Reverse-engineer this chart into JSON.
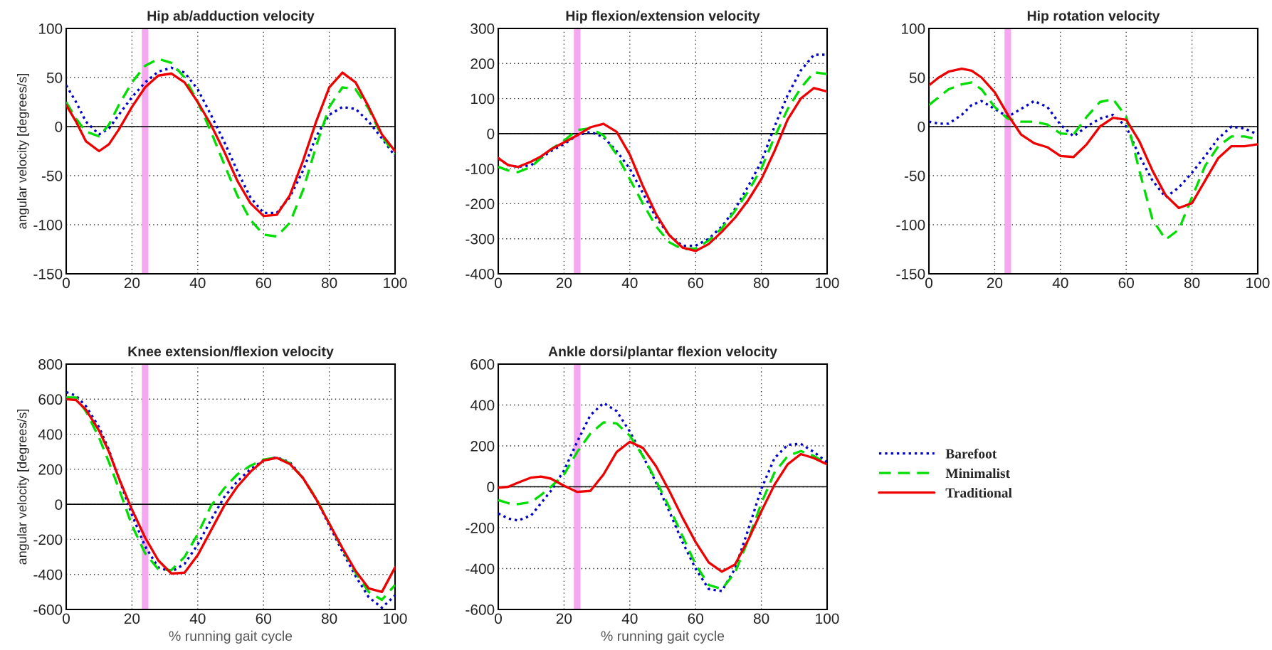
{
  "chart_data": [
    {
      "type": "line",
      "title": "Hip ab/adduction velocity",
      "ylabel": "angular velocity [degrees/s]",
      "x": [
        0,
        3,
        6,
        10,
        13,
        16,
        20,
        24,
        28,
        32,
        36,
        40,
        44,
        48,
        52,
        56,
        60,
        64,
        68,
        72,
        76,
        80,
        84,
        88,
        92,
        96,
        100
      ],
      "xlim": [
        0,
        100
      ],
      "xticks": [
        0,
        20,
        40,
        60,
        80,
        100
      ],
      "ylim": [
        -150,
        100
      ],
      "yticks": [
        -150,
        -100,
        -50,
        0,
        50,
        100
      ],
      "grid": true,
      "ref_lines": [
        {
          "axis": "y",
          "value": 0,
          "color": "#000000"
        }
      ],
      "bands": [
        {
          "axis": "x",
          "from": 23,
          "to": 25,
          "color": "#f5a8f0"
        }
      ],
      "series": [
        {
          "color": "#0000cc",
          "line_style": "dotted",
          "values": [
            42,
            25,
            5,
            -8,
            -2,
            12,
            30,
            45,
            56,
            60,
            55,
            38,
            12,
            -15,
            -45,
            -72,
            -88,
            -88,
            -72,
            -45,
            -10,
            12,
            20,
            18,
            5,
            -12,
            -30
          ]
        },
        {
          "color": "#00dd00",
          "line_style": "dashed",
          "values": [
            25,
            8,
            -5,
            -10,
            2,
            22,
            45,
            62,
            69,
            65,
            50,
            25,
            -5,
            -38,
            -70,
            -95,
            -110,
            -112,
            -98,
            -65,
            -20,
            20,
            40,
            38,
            18,
            -10,
            -28
          ]
        },
        {
          "color": "#ee0000",
          "line_style": "solid",
          "values": [
            22,
            5,
            -15,
            -25,
            -18,
            -3,
            20,
            40,
            52,
            54,
            45,
            25,
            2,
            -25,
            -55,
            -78,
            -91,
            -90,
            -70,
            -35,
            5,
            40,
            55,
            45,
            20,
            -8,
            -25
          ]
        }
      ]
    },
    {
      "type": "line",
      "title": "Hip flexion/extension velocity",
      "x": [
        0,
        3,
        6,
        10,
        13,
        16,
        20,
        24,
        28,
        32,
        36,
        40,
        44,
        48,
        52,
        56,
        60,
        64,
        68,
        72,
        76,
        80,
        84,
        88,
        92,
        96,
        100
      ],
      "xlim": [
        0,
        100
      ],
      "xticks": [
        0,
        20,
        40,
        60,
        80,
        100
      ],
      "ylim": [
        -400,
        300
      ],
      "yticks": [
        -400,
        -300,
        -200,
        -100,
        0,
        100,
        200,
        300
      ],
      "grid": true,
      "ref_lines": [
        {
          "axis": "y",
          "value": 0,
          "color": "#000000"
        }
      ],
      "bands": [
        {
          "axis": "x",
          "from": 23,
          "to": 25,
          "color": "#f5a8f0"
        }
      ],
      "series": [
        {
          "color": "#0000cc",
          "line_style": "dotted",
          "values": [
            -70,
            -90,
            -95,
            -90,
            -70,
            -50,
            -30,
            -5,
            5,
            -10,
            -50,
            -100,
            -170,
            -240,
            -290,
            -320,
            -320,
            -300,
            -265,
            -215,
            -150,
            -80,
            20,
            110,
            180,
            225,
            225
          ]
        },
        {
          "color": "#00dd00",
          "line_style": "dashed",
          "values": [
            -95,
            -105,
            -110,
            -95,
            -70,
            -45,
            -20,
            10,
            15,
            -5,
            -60,
            -130,
            -200,
            -265,
            -310,
            -330,
            -328,
            -305,
            -270,
            -220,
            -165,
            -100,
            -10,
            70,
            130,
            175,
            170
          ]
        },
        {
          "color": "#ee0000",
          "line_style": "solid",
          "values": [
            -70,
            -90,
            -95,
            -80,
            -65,
            -45,
            -25,
            -5,
            18,
            28,
            5,
            -60,
            -150,
            -230,
            -290,
            -325,
            -335,
            -315,
            -280,
            -240,
            -190,
            -130,
            -50,
            40,
            100,
            130,
            120
          ]
        }
      ]
    },
    {
      "type": "line",
      "title": "Hip rotation velocity",
      "x": [
        0,
        3,
        6,
        10,
        13,
        16,
        20,
        24,
        28,
        32,
        36,
        40,
        44,
        48,
        52,
        56,
        60,
        64,
        68,
        72,
        76,
        80,
        84,
        88,
        92,
        96,
        100
      ],
      "xlim": [
        0,
        100
      ],
      "xticks": [
        0,
        20,
        40,
        60,
        80,
        100
      ],
      "ylim": [
        -150,
        100
      ],
      "yticks": [
        -150,
        -100,
        -50,
        0,
        50,
        100
      ],
      "grid": true,
      "ref_lines": [
        {
          "axis": "y",
          "value": 0,
          "color": "#000000"
        }
      ],
      "bands": [
        {
          "axis": "x",
          "from": 23,
          "to": 25,
          "color": "#f5a8f0"
        }
      ],
      "series": [
        {
          "color": "#0000cc",
          "line_style": "dotted",
          "values": [
            5,
            3,
            3,
            12,
            22,
            26,
            18,
            10,
            18,
            26,
            20,
            2,
            -10,
            0,
            8,
            12,
            0,
            -30,
            -55,
            -72,
            -62,
            -47,
            -30,
            -12,
            0,
            -2,
            -8
          ]
        },
        {
          "color": "#00dd00",
          "line_style": "dashed",
          "values": [
            22,
            30,
            38,
            43,
            45,
            38,
            20,
            8,
            5,
            5,
            2,
            -7,
            -8,
            10,
            25,
            28,
            10,
            -45,
            -95,
            -115,
            -105,
            -72,
            -40,
            -20,
            -10,
            -10,
            -13
          ]
        },
        {
          "color": "#ee0000",
          "line_style": "solid",
          "values": [
            42,
            50,
            56,
            59,
            57,
            50,
            35,
            12,
            -8,
            -17,
            -21,
            -30,
            -31,
            -18,
            0,
            9,
            7,
            -15,
            -45,
            -70,
            -83,
            -78,
            -55,
            -32,
            -20,
            -20,
            -18
          ]
        }
      ]
    },
    {
      "type": "line",
      "title": "Knee extension/flexion velocity",
      "ylabel": "angular velocity [degrees/s]",
      "xlabel": "% running gait cycle",
      "x": [
        0,
        3,
        6,
        10,
        13,
        16,
        20,
        24,
        28,
        32,
        36,
        40,
        44,
        48,
        52,
        56,
        60,
        64,
        68,
        72,
        76,
        80,
        84,
        88,
        92,
        96,
        100
      ],
      "xlim": [
        0,
        100
      ],
      "xticks": [
        0,
        20,
        40,
        60,
        80,
        100
      ],
      "ylim": [
        -600,
        800
      ],
      "yticks": [
        -600,
        -400,
        -200,
        0,
        200,
        400,
        600,
        800
      ],
      "grid": true,
      "ref_lines": [
        {
          "axis": "y",
          "value": 0,
          "color": "#000000"
        }
      ],
      "bands": [
        {
          "axis": "x",
          "from": 23,
          "to": 25,
          "color": "#f5a8f0"
        }
      ],
      "series": [
        {
          "color": "#0000cc",
          "line_style": "dotted",
          "values": [
            640,
            620,
            560,
            440,
            310,
            150,
            -60,
            -240,
            -360,
            -385,
            -340,
            -230,
            -90,
            40,
            130,
            200,
            250,
            268,
            240,
            150,
            30,
            -120,
            -270,
            -410,
            -530,
            -590,
            -520
          ]
        },
        {
          "color": "#00dd00",
          "line_style": "dashed",
          "values": [
            610,
            610,
            530,
            380,
            240,
            90,
            -120,
            -280,
            -370,
            -375,
            -300,
            -170,
            -10,
            90,
            170,
            220,
            255,
            268,
            235,
            150,
            35,
            -110,
            -255,
            -390,
            -500,
            -545,
            -460
          ]
        },
        {
          "color": "#ee0000",
          "line_style": "solid",
          "values": [
            600,
            595,
            540,
            420,
            300,
            150,
            -30,
            -190,
            -320,
            -395,
            -390,
            -290,
            -150,
            -10,
            100,
            185,
            250,
            265,
            230,
            150,
            30,
            -110,
            -250,
            -380,
            -480,
            -500,
            -360
          ]
        }
      ]
    },
    {
      "type": "line",
      "title": "Ankle dorsi/plantar flexion velocity",
      "xlabel": "% running gait cycle",
      "legend": "right",
      "x": [
        0,
        3,
        6,
        10,
        13,
        16,
        20,
        24,
        28,
        32,
        36,
        40,
        44,
        48,
        52,
        56,
        60,
        64,
        68,
        72,
        76,
        80,
        84,
        88,
        92,
        96,
        100
      ],
      "xlim": [
        0,
        100
      ],
      "xticks": [
        0,
        20,
        40,
        60,
        80,
        100
      ],
      "ylim": [
        -600,
        600
      ],
      "yticks": [
        -600,
        -400,
        -200,
        0,
        200,
        400,
        600
      ],
      "grid": true,
      "ref_lines": [
        {
          "axis": "y",
          "value": 0,
          "color": "#000000"
        }
      ],
      "bands": [
        {
          "axis": "x",
          "from": 23,
          "to": 25,
          "color": "#f5a8f0"
        }
      ],
      "series": [
        {
          "name": "Barefoot",
          "color": "#0000cc",
          "line_style": "dotted",
          "values": [
            -130,
            -155,
            -165,
            -140,
            -80,
            -20,
            80,
            220,
            350,
            410,
            370,
            270,
            150,
            20,
            -120,
            -270,
            -400,
            -500,
            -510,
            -400,
            -210,
            -10,
            140,
            205,
            210,
            170,
            120
          ]
        },
        {
          "name": "Minimalist",
          "color": "#00dd00",
          "line_style": "dashed",
          "values": [
            -65,
            -80,
            -85,
            -75,
            -40,
            0,
            60,
            170,
            260,
            315,
            310,
            250,
            150,
            30,
            -100,
            -240,
            -380,
            -480,
            -500,
            -420,
            -260,
            -80,
            70,
            150,
            175,
            150,
            115
          ]
        },
        {
          "name": "Traditional",
          "color": "#ee0000",
          "line_style": "solid",
          "values": [
            -5,
            0,
            20,
            45,
            50,
            40,
            5,
            -25,
            -20,
            60,
            170,
            220,
            190,
            100,
            -20,
            -150,
            -270,
            -370,
            -415,
            -380,
            -260,
            -120,
            10,
            110,
            160,
            140,
            110
          ]
        }
      ]
    }
  ]
}
